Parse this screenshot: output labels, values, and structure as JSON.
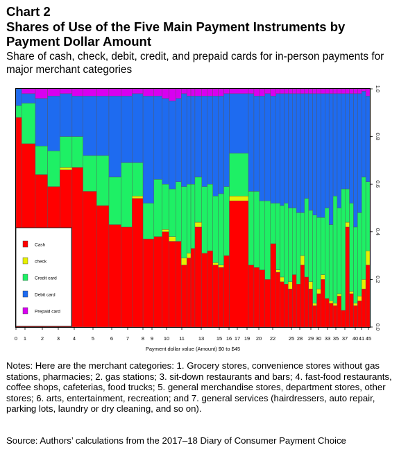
{
  "title_line1": "Chart 2",
  "title_line2": "Shares of Use of the Five Main Payment Instruments by Payment Dollar Amount",
  "subtitle": "Share of cash, check, debit, credit, and prepaid cards for in-person payments for major merchant categories",
  "notes": "Notes: Here are the merchant categories: 1. Grocery stores, convenience stores without gas stations, pharmacies; 2. gas stations; 3. sit-down restaurants and bars; 4. fast-food restaurants, coffee shops, cafeterias, food trucks; 5. general merchandise stores, department stores, other stores; 6. arts, entertainment, recreation; and 7. general services (hairdressers, auto repair, parking lots, laundry or dry cleaning, and so on).",
  "source": "Source: Authors’ calculations from the 2017–18 Diary of Consumer Payment Choice",
  "colors": {
    "Cash": "#ff0000",
    "check": "#e6f000",
    "Credit card": "#1ef065",
    "Debit card": "#1e6bf0",
    "Prepaid card": "#d800f0"
  },
  "chart_data": {
    "type": "bar",
    "stacked": true,
    "variable_width": true,
    "xlabel": "Payment dollar value (Amount) $0 to $45",
    "ylabel": "",
    "ylim": [
      0,
      1
    ],
    "y_ticks": [
      "0.0",
      "0.2",
      "0.4",
      "0.6",
      "0.8",
      "1.0"
    ],
    "y_axis_side": "right",
    "x_tick_labels": [
      "0",
      "1",
      "2",
      "3",
      "4",
      "5",
      "6",
      "7",
      "8",
      "9",
      "10",
      "11",
      "13",
      "15",
      "16",
      "17",
      "19",
      "20",
      "22",
      "25",
      "28",
      "29",
      "30",
      "33",
      "35",
      "37",
      "40",
      "41",
      "45"
    ],
    "legend": [
      "Cash",
      "check",
      "Credit card",
      "Debit card",
      "Prepaid card"
    ],
    "legend_position": "left",
    "series_order": [
      "Cash",
      "check",
      "Credit card",
      "Debit card",
      "Prepaid card"
    ],
    "bars": [
      {
        "w": 5.6,
        "v": [
          0.88,
          0.0,
          0.05,
          0.07,
          0.0
        ]
      },
      {
        "w": 13.4,
        "v": [
          0.77,
          0.0,
          0.17,
          0.04,
          0.02
        ]
      },
      {
        "w": 12.0,
        "v": [
          0.64,
          0.0,
          0.12,
          0.2,
          0.04
        ]
      },
      {
        "w": 12.0,
        "v": [
          0.59,
          0.0,
          0.15,
          0.23,
          0.03
        ]
      },
      {
        "w": 12.0,
        "v": [
          0.66,
          0.01,
          0.13,
          0.18,
          0.02
        ]
      },
      {
        "w": 10.7,
        "v": [
          0.67,
          0.0,
          0.13,
          0.17,
          0.03
        ]
      },
      {
        "w": 13.4,
        "v": [
          0.57,
          0.0,
          0.15,
          0.25,
          0.03
        ]
      },
      {
        "w": 12.0,
        "v": [
          0.51,
          0.0,
          0.21,
          0.25,
          0.03
        ]
      },
      {
        "w": 12.0,
        "v": [
          0.43,
          0.0,
          0.2,
          0.34,
          0.03
        ]
      },
      {
        "w": 10.7,
        "v": [
          0.42,
          0.0,
          0.27,
          0.28,
          0.03
        ]
      },
      {
        "w": 10.7,
        "v": [
          0.54,
          0.01,
          0.14,
          0.29,
          0.02
        ]
      },
      {
        "w": 10.7,
        "v": [
          0.37,
          0.0,
          0.15,
          0.45,
          0.03
        ]
      },
      {
        "w": 8.0,
        "v": [
          0.38,
          0.0,
          0.24,
          0.35,
          0.03
        ]
      },
      {
        "w": 6.7,
        "v": [
          0.4,
          0.01,
          0.19,
          0.36,
          0.04
        ]
      },
      {
        "w": 6.7,
        "v": [
          0.36,
          0.02,
          0.2,
          0.37,
          0.05
        ]
      },
      {
        "w": 5.4,
        "v": [
          0.36,
          0.0,
          0.25,
          0.35,
          0.04
        ]
      },
      {
        "w": 5.4,
        "v": [
          0.26,
          0.03,
          0.3,
          0.39,
          0.02
        ]
      },
      {
        "w": 4.0,
        "v": [
          0.29,
          0.02,
          0.29,
          0.37,
          0.03
        ]
      },
      {
        "w": 4.0,
        "v": [
          0.33,
          0.0,
          0.27,
          0.37,
          0.03
        ]
      },
      {
        "w": 6.7,
        "v": [
          0.42,
          0.02,
          0.19,
          0.34,
          0.03
        ]
      },
      {
        "w": 5.4,
        "v": [
          0.31,
          0.0,
          0.28,
          0.38,
          0.03
        ]
      },
      {
        "w": 5.4,
        "v": [
          0.32,
          0.0,
          0.28,
          0.37,
          0.03
        ]
      },
      {
        "w": 5.4,
        "v": [
          0.26,
          0.01,
          0.28,
          0.42,
          0.03
        ]
      },
      {
        "w": 5.4,
        "v": [
          0.25,
          0.01,
          0.3,
          0.41,
          0.03
        ]
      },
      {
        "w": 5.4,
        "v": [
          0.3,
          0.0,
          0.29,
          0.39,
          0.02
        ]
      },
      {
        "w": 18.7,
        "v": [
          0.53,
          0.02,
          0.18,
          0.25,
          0.02
        ]
      },
      {
        "w": 5.4,
        "v": [
          0.26,
          0.0,
          0.31,
          0.41,
          0.02
        ]
      },
      {
        "w": 5.4,
        "v": [
          0.25,
          0.0,
          0.32,
          0.4,
          0.03
        ]
      },
      {
        "w": 5.4,
        "v": [
          0.24,
          0.0,
          0.29,
          0.44,
          0.03
        ]
      },
      {
        "w": 5.4,
        "v": [
          0.2,
          0.0,
          0.33,
          0.45,
          0.02
        ]
      },
      {
        "w": 5.4,
        "v": [
          0.35,
          0.0,
          0.17,
          0.45,
          0.03
        ]
      },
      {
        "w": 4.0,
        "v": [
          0.23,
          0.01,
          0.28,
          0.46,
          0.02
        ]
      },
      {
        "w": 4.0,
        "v": [
          0.19,
          0.02,
          0.3,
          0.47,
          0.02
        ]
      },
      {
        "w": 4.0,
        "v": [
          0.18,
          0.0,
          0.34,
          0.46,
          0.02
        ]
      },
      {
        "w": 4.0,
        "v": [
          0.16,
          0.03,
          0.31,
          0.48,
          0.02
        ]
      },
      {
        "w": 4.0,
        "v": [
          0.22,
          0.0,
          0.28,
          0.48,
          0.02
        ]
      },
      {
        "w": 4.0,
        "v": [
          0.18,
          0.0,
          0.3,
          0.5,
          0.02
        ]
      },
      {
        "w": 4.0,
        "v": [
          0.26,
          0.04,
          0.18,
          0.5,
          0.02
        ]
      },
      {
        "w": 4.0,
        "v": [
          0.21,
          0.0,
          0.33,
          0.44,
          0.02
        ]
      },
      {
        "w": 4.0,
        "v": [
          0.16,
          0.03,
          0.3,
          0.49,
          0.02
        ]
      },
      {
        "w": 4.0,
        "v": [
          0.09,
          0.01,
          0.37,
          0.51,
          0.02
        ]
      },
      {
        "w": 4.0,
        "v": [
          0.14,
          0.02,
          0.3,
          0.52,
          0.02
        ]
      },
      {
        "w": 4.0,
        "v": [
          0.2,
          0.02,
          0.24,
          0.52,
          0.02
        ]
      },
      {
        "w": 4.0,
        "v": [
          0.12,
          0.0,
          0.38,
          0.48,
          0.02
        ]
      },
      {
        "w": 4.0,
        "v": [
          0.1,
          0.01,
          0.32,
          0.55,
          0.02
        ]
      },
      {
        "w": 4.0,
        "v": [
          0.09,
          0.01,
          0.45,
          0.43,
          0.02
        ]
      },
      {
        "w": 4.0,
        "v": [
          0.13,
          0.01,
          0.36,
          0.48,
          0.02
        ]
      },
      {
        "w": 4.0,
        "v": [
          0.07,
          0.0,
          0.51,
          0.4,
          0.02
        ]
      },
      {
        "w": 4.0,
        "v": [
          0.42,
          0.02,
          0.14,
          0.4,
          0.02
        ]
      },
      {
        "w": 4.0,
        "v": [
          0.14,
          0.01,
          0.37,
          0.46,
          0.02
        ]
      },
      {
        "w": 4.0,
        "v": [
          0.09,
          0.01,
          0.32,
          0.56,
          0.02
        ]
      },
      {
        "w": 4.0,
        "v": [
          0.11,
          0.02,
          0.35,
          0.5,
          0.02
        ]
      },
      {
        "w": 4.0,
        "v": [
          0.16,
          0.04,
          0.43,
          0.36,
          0.01
        ]
      },
      {
        "w": 4.0,
        "v": [
          0.26,
          0.06,
          0.29,
          0.36,
          0.03
        ]
      }
    ]
  }
}
